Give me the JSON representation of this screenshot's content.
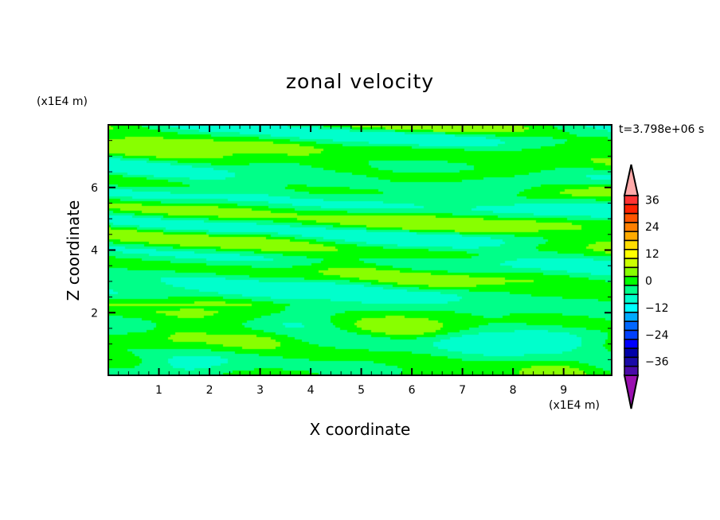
{
  "chart_data": {
    "type": "heatmap",
    "subtype": "filled-contour",
    "title": "zonal velocity",
    "xlabel": "X coordinate",
    "ylabel": "Z coordinate",
    "x_unit_label": "(x1E4 m)",
    "y_unit_label": "(x1E4 m)",
    "annotation": "t=3.798e+06 s",
    "xlim": [
      0,
      10
    ],
    "ylim": [
      0,
      8
    ],
    "x_ticks": [
      "1",
      "2",
      "3",
      "4",
      "5",
      "6",
      "7",
      "8",
      "9"
    ],
    "y_ticks": [
      "2",
      "4",
      "6"
    ],
    "colorbar": {
      "levels_min": -40,
      "levels_max": 40,
      "step": 4,
      "tick_labels": [
        "36",
        "24",
        "12",
        "0",
        "-12",
        "-24",
        "-36"
      ],
      "tick_values": [
        36,
        24,
        12,
        0,
        -12,
        -24,
        -36
      ],
      "colors_top_to_bottom": [
        "#ff3333",
        "#ff2200",
        "#ff5500",
        "#ff7f00",
        "#ffaa00",
        "#ffdd00",
        "#ffff00",
        "#ccff00",
        "#88ff00",
        "#00ff00",
        "#00ff88",
        "#00ffcc",
        "#00ffff",
        "#00aaff",
        "#0066ff",
        "#0040ff",
        "#0000ff",
        "#0000a8",
        "#1a0aa8",
        "#4a0aa8"
      ],
      "over_color": "#ffaaaa",
      "under_color": "#9a10b0",
      "extend": "both"
    },
    "field_description_classes": {
      "4 to 8": "#88ff00",
      "0 to 4": "#00ff00",
      "-4 to 0": "#00ff88",
      "-8 to -4": "#00ffcc"
    },
    "features": [
      {
        "x": 1.5,
        "z": 1.4,
        "value": 6
      },
      {
        "x": 2.9,
        "z": 1.1,
        "value": 5
      },
      {
        "x": 5.8,
        "z": 1.5,
        "value": 6
      },
      {
        "x": 8.9,
        "z": 0.2,
        "value": 5
      },
      {
        "x": 4.3,
        "z": 0.0,
        "value": 5
      },
      {
        "x": 7.5,
        "z": 1.0,
        "value": -6
      },
      {
        "x": 8.7,
        "z": 1.1,
        "value": -6
      },
      {
        "x": 3.7,
        "z": 1.7,
        "value": -5
      },
      {
        "x": 4.6,
        "z": 0.1,
        "value": -6
      },
      {
        "x": 1.6,
        "z": 0.3,
        "value": -5
      }
    ]
  }
}
